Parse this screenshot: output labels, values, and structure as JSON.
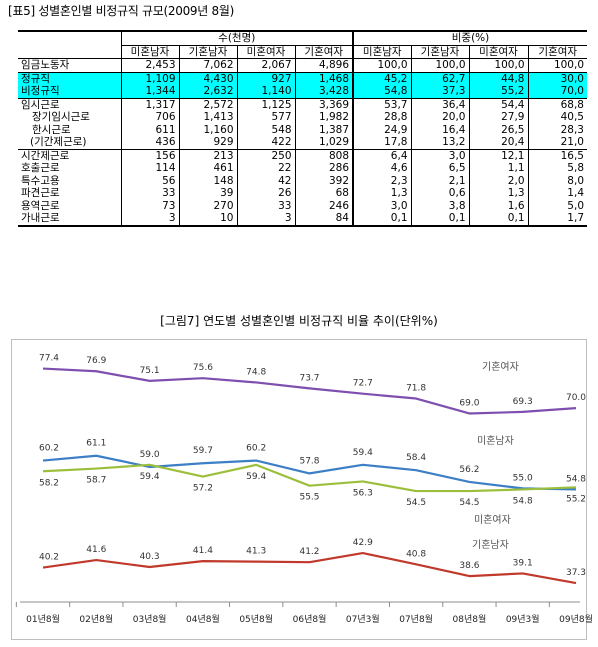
{
  "table": {
    "title": "[표5] 성별혼인별 비정규직 규모(2009년 8월)",
    "group_headers": [
      "수(천명)",
      "비중(%)"
    ],
    "columns": [
      "미혼남자",
      "기혼남자",
      "미혼여자",
      "기혼여자",
      "미혼남자",
      "기혼남자",
      "미혼여자",
      "기혼여자"
    ],
    "rows": [
      {
        "label": "임금노동자",
        "values": [
          "2,453",
          "7,062",
          "2,067",
          "4,896",
          "100,0",
          "100,0",
          "100,0",
          "100,0"
        ]
      },
      {
        "label": "정규직",
        "values": [
          "1,109",
          "4,430",
          "927",
          "1,468",
          "45,2",
          "62,7",
          "44,8",
          "30,0"
        ]
      },
      {
        "label": "비정규직",
        "values": [
          "1,344",
          "2,632",
          "1,140",
          "3,428",
          "54,8",
          "37,3",
          "55,2",
          "70,0"
        ]
      },
      {
        "label": "임시근로",
        "values": [
          "1,317",
          "2,572",
          "1,125",
          "3,369",
          "53,7",
          "36,4",
          "54,4",
          "68,8"
        ]
      },
      {
        "label": "장기임시근로",
        "values": [
          "706",
          "1,413",
          "577",
          "1,982",
          "28,8",
          "20,0",
          "27,9",
          "40,5"
        ]
      },
      {
        "label": "한시근로",
        "values": [
          "611",
          "1,160",
          "548",
          "1,387",
          "24,9",
          "16,4",
          "26,5",
          "28,3"
        ]
      },
      {
        "label": "(기간제근로)",
        "values": [
          "436",
          "929",
          "422",
          "1,029",
          "17,8",
          "13,2",
          "20,4",
          "21,0"
        ]
      },
      {
        "label": "시간제근로",
        "values": [
          "156",
          "213",
          "250",
          "808",
          "6,4",
          "3,0",
          "12,1",
          "16,5"
        ]
      },
      {
        "label": "호출근로",
        "values": [
          "114",
          "461",
          "22",
          "286",
          "4,6",
          "6,5",
          "1,1",
          "5,8"
        ]
      },
      {
        "label": "특수고용",
        "values": [
          "56",
          "148",
          "42",
          "392",
          "2,3",
          "2,1",
          "2,0",
          "8,0"
        ]
      },
      {
        "label": "파견근로",
        "values": [
          "33",
          "39",
          "26",
          "68",
          "1,3",
          "0,6",
          "1,3",
          "1,4"
        ]
      },
      {
        "label": "용역근로",
        "values": [
          "73",
          "270",
          "33",
          "246",
          "3,0",
          "3,8",
          "1,6",
          "5,0"
        ]
      },
      {
        "label": "가내근로",
        "values": [
          "3",
          "10",
          "3",
          "84",
          "0,1",
          "0,1",
          "0,1",
          "1,7"
        ]
      }
    ]
  },
  "chart_title": "[그림7] 연도별 성별혼인별 비정규직 비율 추이(단위%)",
  "chart_data": {
    "type": "line",
    "title": "[그림7] 연도별 성별혼인별 비정규직 비율 추이(단위%)",
    "categories": [
      "01년8월",
      "02년8월",
      "03년8월",
      "04년8월",
      "05년8월",
      "06년8월",
      "07년3월",
      "07년8월",
      "08년8월",
      "09년3월",
      "09년8월"
    ],
    "series": [
      {
        "name": "기혼여자",
        "color": "#7e4fae",
        "values": [
          77.4,
          76.9,
          75.1,
          75.6,
          74.8,
          73.7,
          72.7,
          71.8,
          69.0,
          69.3,
          70.0
        ]
      },
      {
        "name": "미혼남자",
        "color": "#3d7fc6",
        "values": [
          60.2,
          61.1,
          59.0,
          59.7,
          60.2,
          57.8,
          59.4,
          58.4,
          56.2,
          55.0,
          54.8
        ]
      },
      {
        "name": "미혼여자",
        "color": "#9bbf3b",
        "values": [
          58.2,
          58.7,
          59.4,
          57.2,
          59.4,
          55.5,
          56.3,
          54.5,
          54.5,
          54.8,
          55.2
        ]
      },
      {
        "name": "기혼남자",
        "color": "#c0392b",
        "values": [
          40.2,
          41.6,
          40.3,
          41.4,
          41.3,
          41.2,
          42.9,
          40.8,
          38.6,
          39.1,
          37.3
        ]
      }
    ],
    "grid": false
  }
}
